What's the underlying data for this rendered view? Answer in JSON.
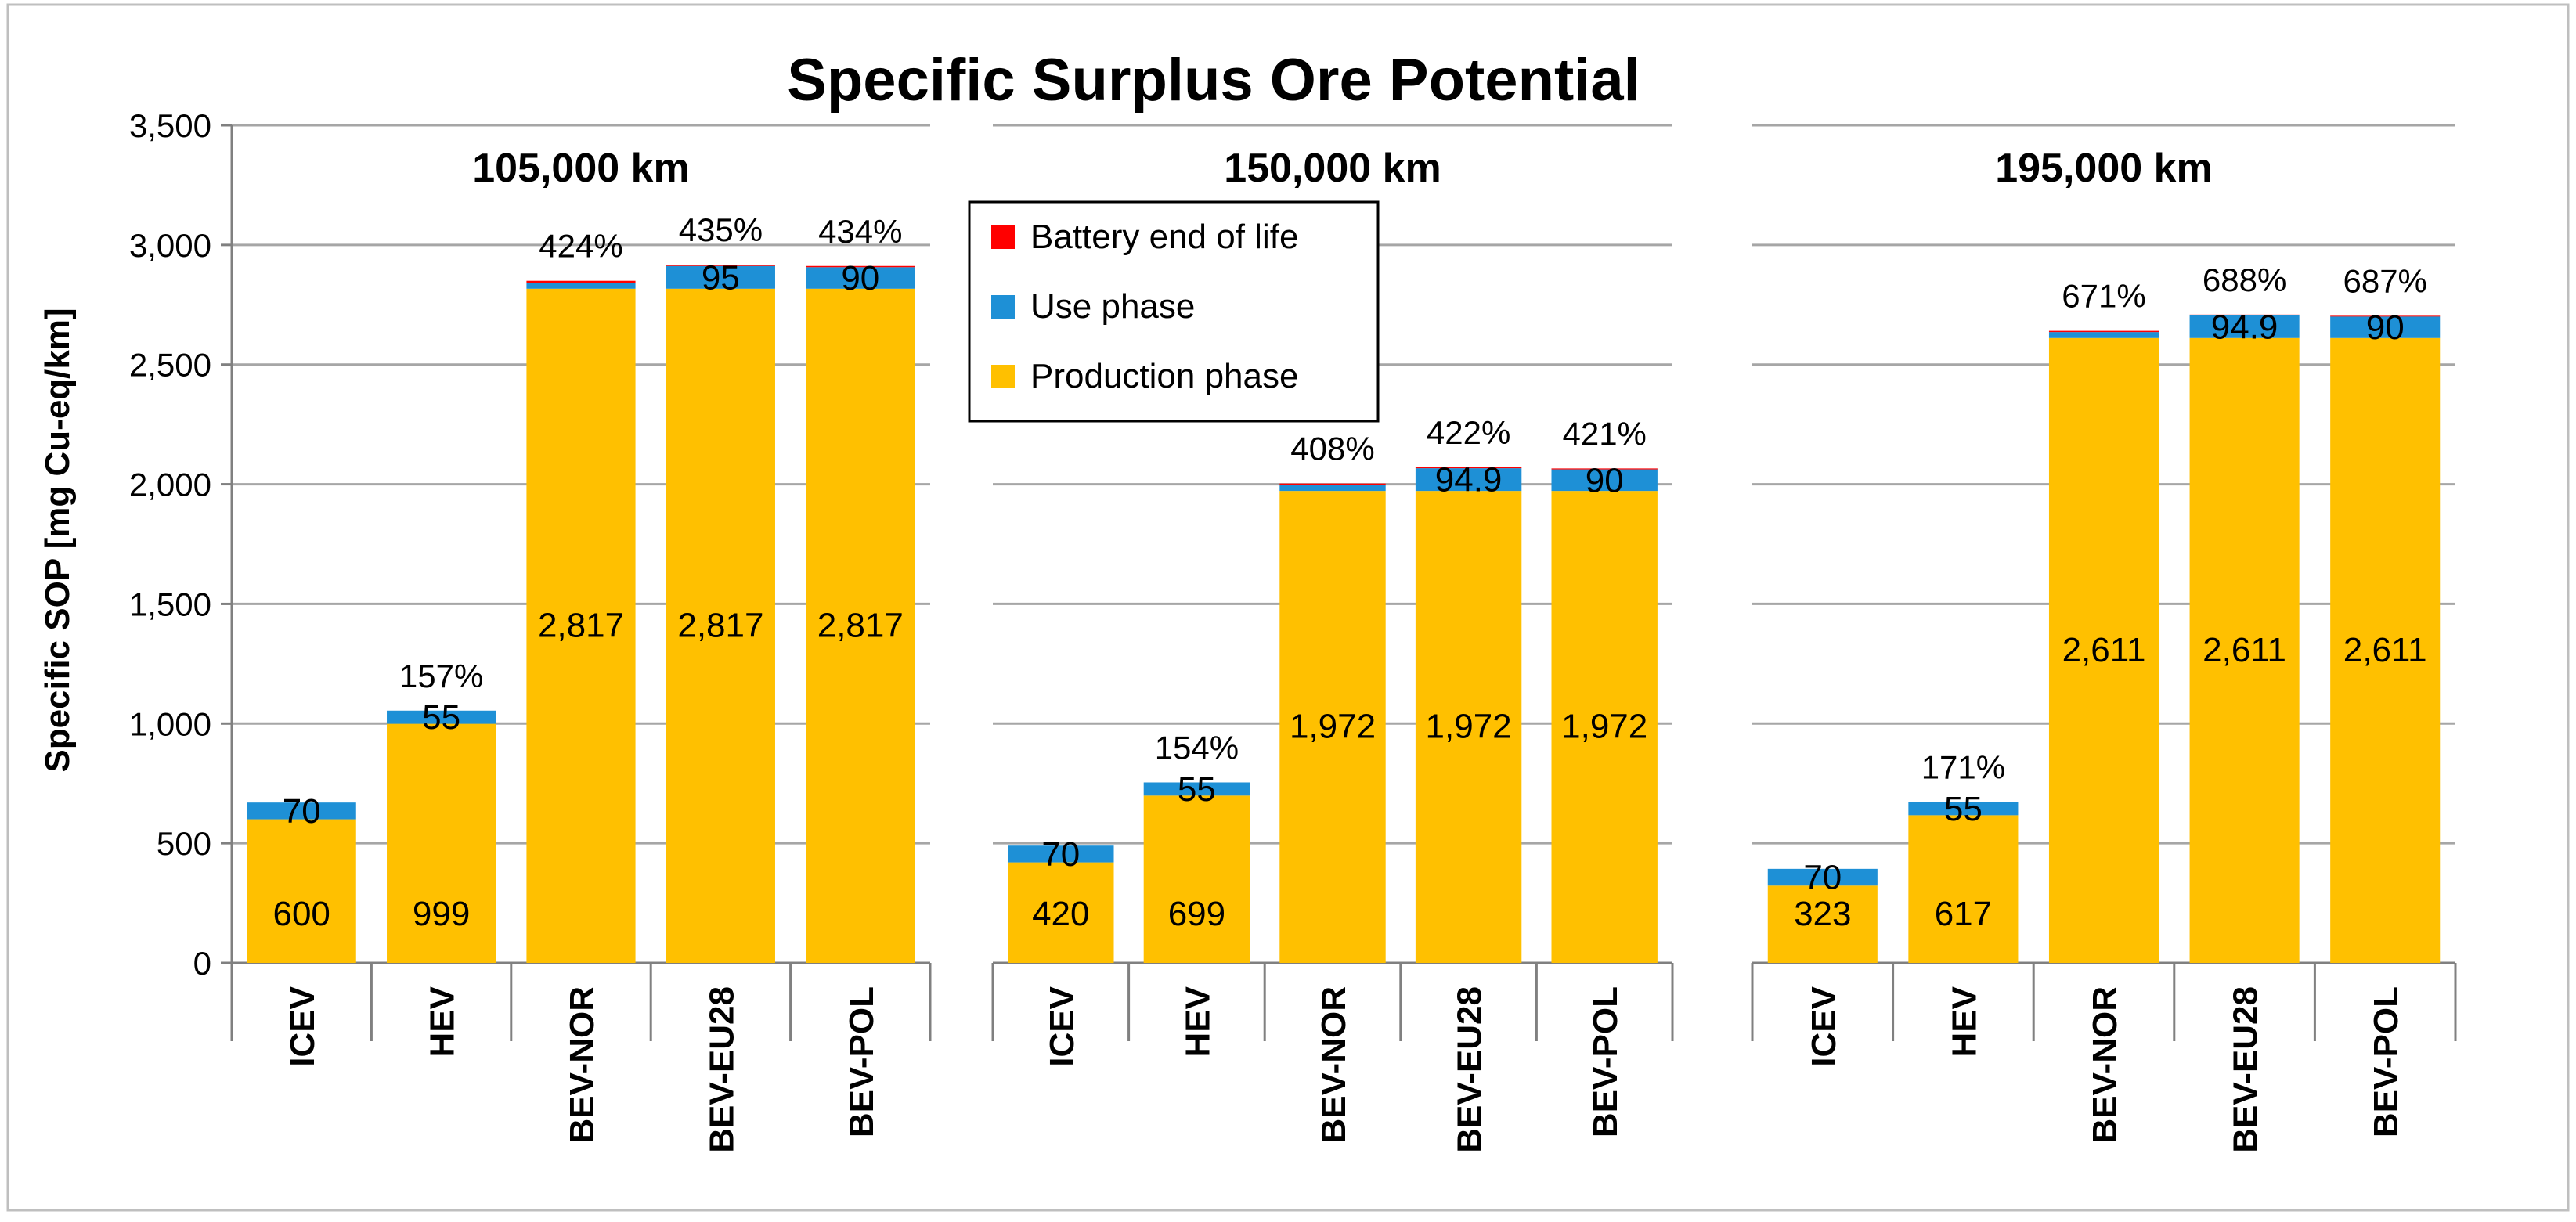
{
  "chart_data": {
    "type": "bar",
    "stacked": true,
    "title": "Specific Surplus Ore Potential",
    "ylabel": "Specific SOP [mg Cu-eq/km]",
    "xlabel": "",
    "ylim": [
      0,
      3500
    ],
    "yticks": [
      0,
      500,
      1000,
      1500,
      2000,
      2500,
      3000,
      3500
    ],
    "ytick_labels": [
      "0",
      "500",
      "1,000",
      "1,500",
      "2,000",
      "2,500",
      "3,000",
      "3,500"
    ],
    "grid": true,
    "legend_position": "top-center",
    "legend": [
      "Battery end of life",
      "Use phase",
      "Production phase"
    ],
    "colors": {
      "Battery end of life": "#ff0000",
      "Use phase": "#1e90d6",
      "Production phase": "#ffc000"
    },
    "categories": [
      "ICEV",
      "HEV",
      "BEV-NOR",
      "BEV-EU28",
      "BEV-POL"
    ],
    "panels": [
      {
        "title": "105,000 km",
        "series": [
          {
            "name": "Production phase",
            "values": [
              600,
              999,
              2817,
              2817,
              2817
            ],
            "labels": [
              "600",
              "999",
              "2,817",
              "2,817",
              "2,817"
            ]
          },
          {
            "name": "Use phase",
            "values": [
              70,
              55,
              25,
              95,
              90
            ],
            "labels": [
              "70",
              "55",
              "",
              "95",
              "90"
            ]
          },
          {
            "name": "Battery end of life",
            "values": [
              0,
              0,
              8,
              5,
              5
            ],
            "labels": [
              "",
              "",
              "",
              "",
              ""
            ]
          }
        ],
        "top_labels": [
          "",
          "157%",
          "424%",
          "435%",
          "434%"
        ]
      },
      {
        "title": "150,000 km",
        "series": [
          {
            "name": "Production phase",
            "values": [
              420,
              699,
              1972,
              1972,
              1972
            ],
            "labels": [
              "420",
              "699",
              "1,972",
              "1,972",
              "1,972"
            ]
          },
          {
            "name": "Use phase",
            "values": [
              70,
              55,
              25,
              94.9,
              90
            ],
            "labels": [
              "70",
              "55",
              "",
              "94.9",
              "90"
            ]
          },
          {
            "name": "Battery end of life",
            "values": [
              0,
              0,
              6,
              4,
              4
            ],
            "labels": [
              "",
              "",
              "",
              "",
              ""
            ]
          }
        ],
        "top_labels": [
          "",
          "154%",
          "408%",
          "422%",
          "421%"
        ]
      },
      {
        "title": "195,000 km",
        "series": [
          {
            "name": "Production phase",
            "values": [
              323,
              617,
              2611,
              2611,
              2611
            ],
            "labels": [
              "323",
              "617",
              "2,611",
              "2,611",
              "2,611"
            ]
          },
          {
            "name": "Use phase",
            "values": [
              70,
              55,
              25,
              94.9,
              90
            ],
            "labels": [
              "70",
              "55",
              "",
              "94.9",
              "90"
            ]
          },
          {
            "name": "Battery end of life",
            "values": [
              0,
              0,
              5,
              3,
              3
            ],
            "labels": [
              "",
              "",
              "",
              "",
              ""
            ]
          }
        ],
        "top_labels": [
          "",
          "171%",
          "671%",
          "688%",
          "687%"
        ]
      }
    ]
  }
}
